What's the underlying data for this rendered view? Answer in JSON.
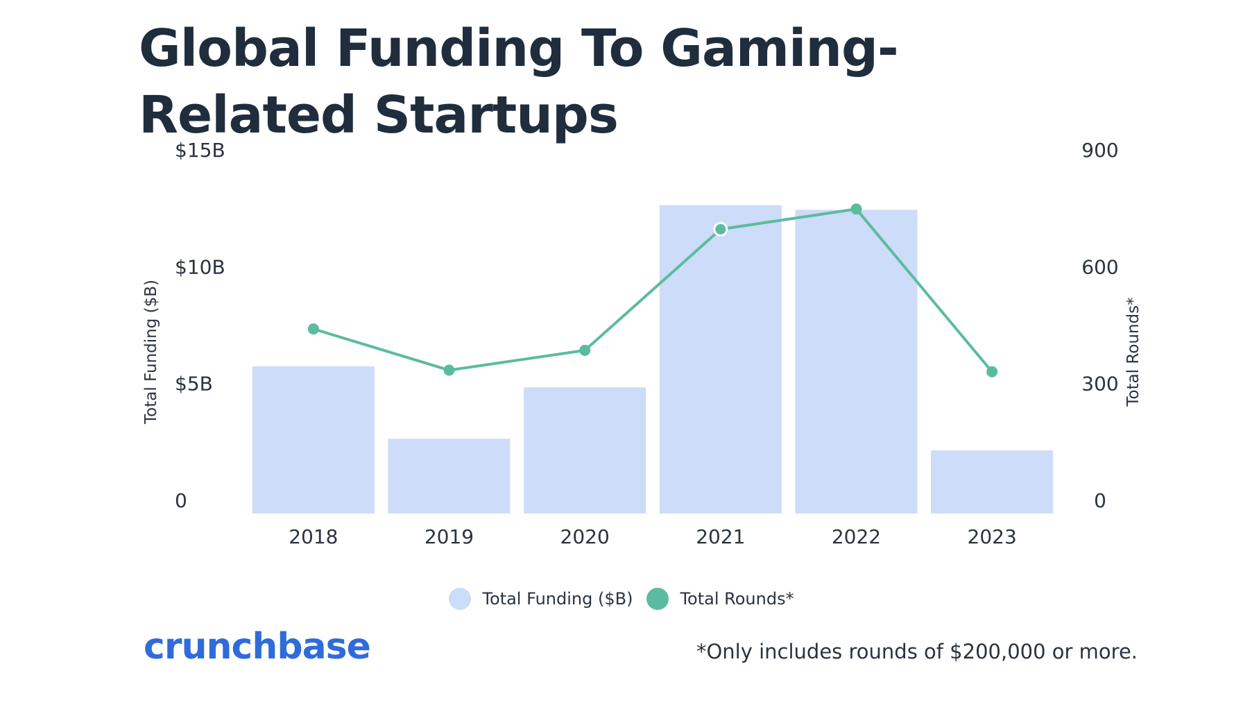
{
  "title": "Global Funding To Gaming-Related Startups",
  "colors": {
    "bar": "#cddcf8",
    "line": "#5bbba0",
    "text": "#1f2d3d",
    "brand": "#2f6bdb"
  },
  "chart_data": {
    "type": "bar",
    "title": "Global Funding To Gaming-Related Startups",
    "categories": [
      "2018",
      "2019",
      "2020",
      "2021",
      "2022",
      "2023"
    ],
    "series": [
      {
        "name": "Total Funding ($B)",
        "type": "bar",
        "axis": "left",
        "values": [
          6.3,
          3.2,
          5.4,
          13.2,
          13.0,
          2.7
        ]
      },
      {
        "name": "Total Rounds*",
        "type": "line",
        "axis": "right",
        "values": [
          474,
          368,
          419,
          730,
          782,
          364
        ]
      }
    ],
    "y_left": {
      "label": "Total Funding ($B)",
      "ticks": [
        {
          "value": 0,
          "label": "0"
        },
        {
          "value": 5,
          "label": "$5B"
        },
        {
          "value": 10,
          "label": "$10B"
        },
        {
          "value": 15,
          "label": "$15B"
        }
      ],
      "range": [
        0,
        15
      ]
    },
    "y_right": {
      "label": "Total Rounds*",
      "ticks": [
        {
          "value": 0,
          "label": "0"
        },
        {
          "value": 300,
          "label": "300"
        },
        {
          "value": 600,
          "label": "600"
        },
        {
          "value": 900,
          "label": "900"
        }
      ],
      "range": [
        0,
        900
      ]
    },
    "grid": false,
    "legend_position": "bottom-center"
  },
  "legend": {
    "funding_label": "Total Funding ($B)",
    "rounds_label": "Total Rounds*"
  },
  "brand": "crunchbase",
  "footnote": "*Only includes rounds of $200,000 or more."
}
